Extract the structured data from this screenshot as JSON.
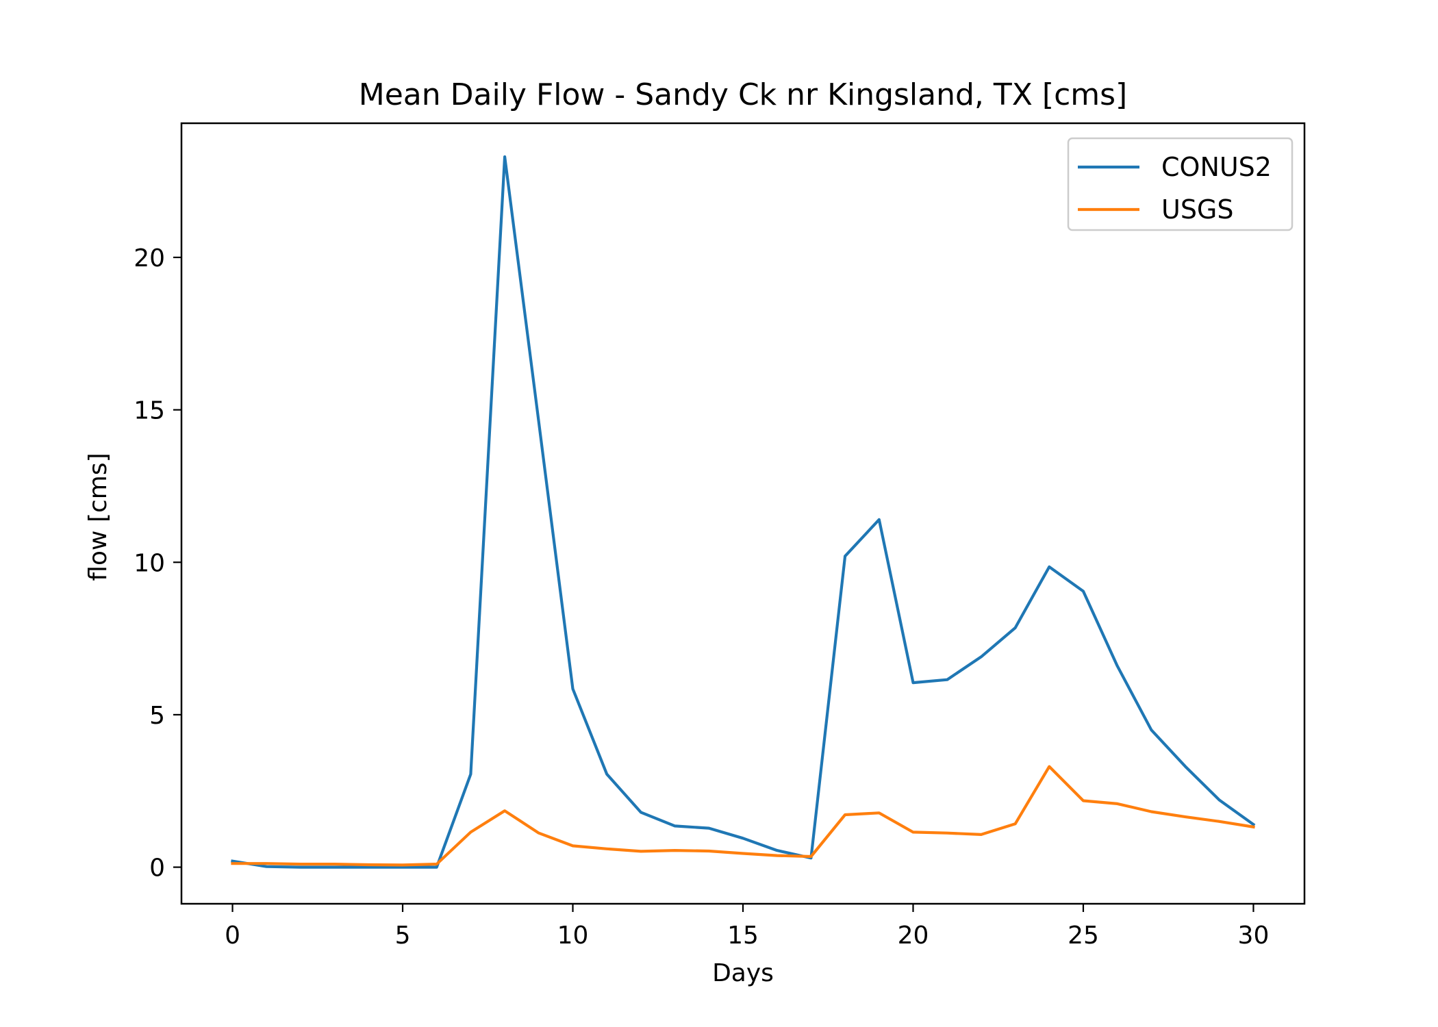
{
  "chart_data": {
    "type": "line",
    "title": "Mean Daily Flow - Sandy Ck nr Kingsland, TX [cms]",
    "xlabel": "Days",
    "ylabel": "flow [cms]",
    "xlim": [
      -1.5,
      31.5
    ],
    "ylim": [
      -1.2,
      24.4
    ],
    "xticks": [
      0,
      5,
      10,
      15,
      20,
      25,
      30
    ],
    "yticks": [
      0,
      5,
      10,
      15,
      20
    ],
    "grid": false,
    "legend_position": "upper-right",
    "x": [
      0,
      1,
      2,
      3,
      4,
      5,
      6,
      7,
      8,
      9,
      10,
      11,
      12,
      13,
      14,
      15,
      16,
      17,
      18,
      19,
      20,
      21,
      22,
      23,
      24,
      25,
      26,
      27,
      28,
      29,
      30
    ],
    "series": [
      {
        "name": "CONUS2",
        "color": "#1f77b4",
        "values": [
          0.2,
          0.02,
          0.0,
          0.0,
          0.0,
          0.0,
          0.0,
          3.05,
          23.3,
          14.6,
          5.85,
          3.05,
          1.8,
          1.35,
          1.28,
          0.95,
          0.55,
          0.3,
          10.2,
          11.4,
          6.05,
          6.15,
          6.9,
          7.85,
          9.85,
          9.05,
          6.6,
          4.5,
          3.3,
          2.2,
          1.4
        ]
      },
      {
        "name": "USGS",
        "color": "#ff7f0e",
        "values": [
          0.12,
          0.12,
          0.1,
          0.1,
          0.08,
          0.07,
          0.1,
          1.15,
          1.85,
          1.12,
          0.7,
          0.6,
          0.52,
          0.55,
          0.53,
          0.45,
          0.38,
          0.35,
          1.72,
          1.78,
          1.15,
          1.12,
          1.07,
          1.42,
          3.3,
          2.18,
          2.08,
          1.82,
          1.65,
          1.5,
          1.32
        ]
      }
    ]
  }
}
